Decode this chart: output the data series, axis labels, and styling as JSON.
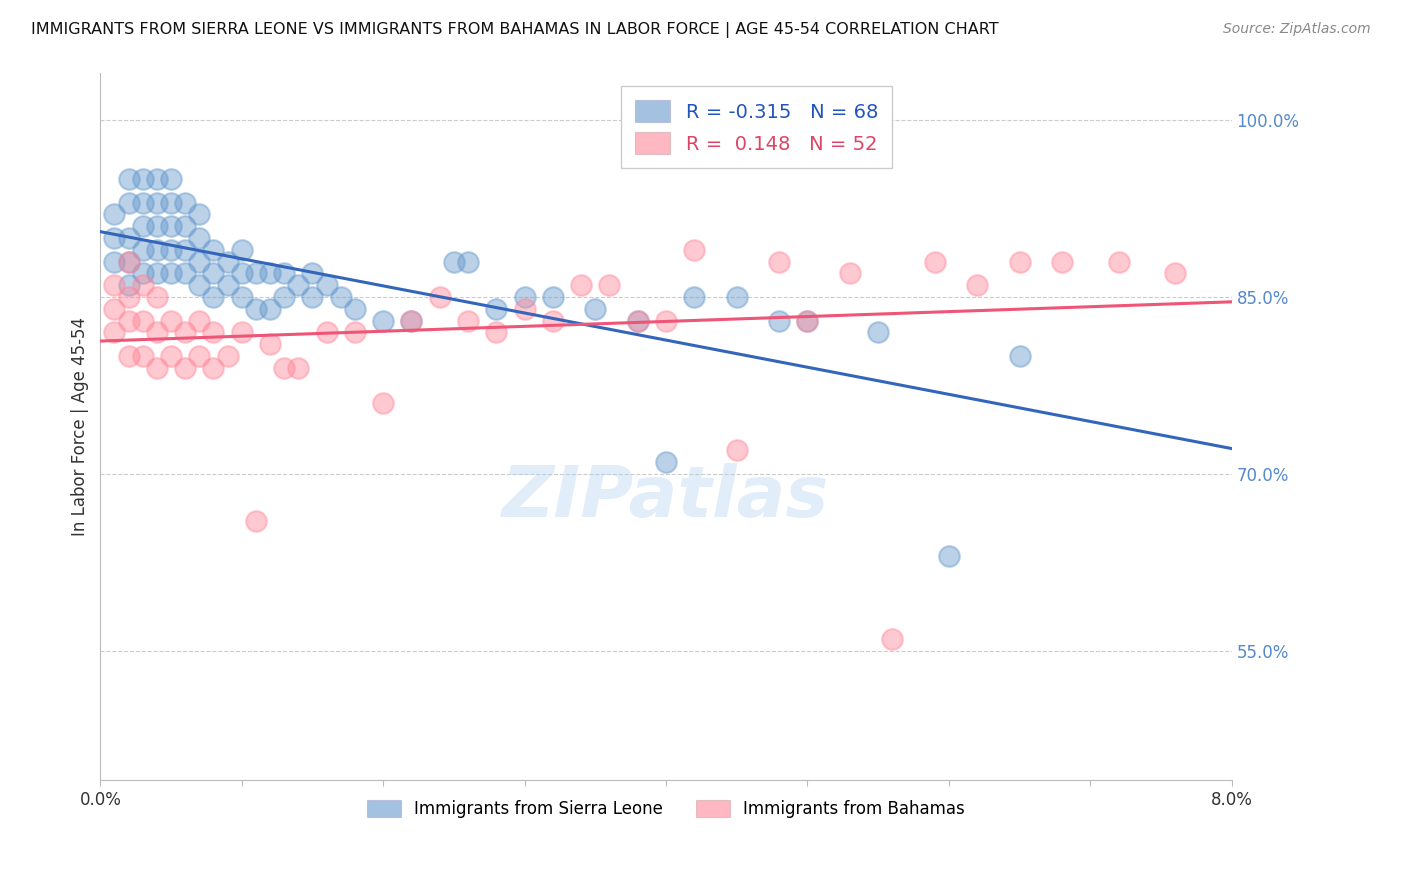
{
  "title": "IMMIGRANTS FROM SIERRA LEONE VS IMMIGRANTS FROM BAHAMAS IN LABOR FORCE | AGE 45-54 CORRELATION CHART",
  "source": "Source: ZipAtlas.com",
  "ylabel": "In Labor Force | Age 45-54",
  "yticks": [
    0.55,
    0.7,
    0.85,
    1.0
  ],
  "ytick_labels": [
    "55.0%",
    "70.0%",
    "85.0%",
    "100.0%"
  ],
  "xmin": 0.0,
  "xmax": 0.08,
  "ymin": 0.44,
  "ymax": 1.04,
  "blue_R": -0.315,
  "blue_N": 68,
  "pink_R": 0.148,
  "pink_N": 52,
  "blue_color": "#6699CC",
  "pink_color": "#FF8899",
  "blue_line_color": "#3366BB",
  "pink_line_color": "#EE5577",
  "legend_label_blue": "Immigrants from Sierra Leone",
  "legend_label_pink": "Immigrants from Bahamas",
  "watermark": "ZIPatlas",
  "blue_scatter_x": [
    0.001,
    0.001,
    0.001,
    0.002,
    0.002,
    0.002,
    0.002,
    0.002,
    0.003,
    0.003,
    0.003,
    0.003,
    0.003,
    0.004,
    0.004,
    0.004,
    0.004,
    0.004,
    0.005,
    0.005,
    0.005,
    0.005,
    0.005,
    0.006,
    0.006,
    0.006,
    0.006,
    0.007,
    0.007,
    0.007,
    0.007,
    0.008,
    0.008,
    0.008,
    0.009,
    0.009,
    0.01,
    0.01,
    0.01,
    0.011,
    0.011,
    0.012,
    0.012,
    0.013,
    0.013,
    0.014,
    0.015,
    0.015,
    0.016,
    0.017,
    0.018,
    0.02,
    0.022,
    0.025,
    0.026,
    0.028,
    0.03,
    0.032,
    0.035,
    0.038,
    0.04,
    0.042,
    0.045,
    0.048,
    0.05,
    0.055,
    0.06,
    0.065
  ],
  "blue_scatter_y": [
    0.88,
    0.9,
    0.92,
    0.86,
    0.88,
    0.9,
    0.93,
    0.95,
    0.87,
    0.89,
    0.91,
    0.93,
    0.95,
    0.87,
    0.89,
    0.91,
    0.93,
    0.95,
    0.87,
    0.89,
    0.91,
    0.93,
    0.95,
    0.87,
    0.89,
    0.91,
    0.93,
    0.86,
    0.88,
    0.9,
    0.92,
    0.85,
    0.87,
    0.89,
    0.86,
    0.88,
    0.85,
    0.87,
    0.89,
    0.84,
    0.87,
    0.84,
    0.87,
    0.85,
    0.87,
    0.86,
    0.85,
    0.87,
    0.86,
    0.85,
    0.84,
    0.83,
    0.83,
    0.88,
    0.88,
    0.84,
    0.85,
    0.85,
    0.84,
    0.83,
    0.71,
    0.85,
    0.85,
    0.83,
    0.83,
    0.82,
    0.63,
    0.8
  ],
  "pink_scatter_x": [
    0.001,
    0.001,
    0.001,
    0.002,
    0.002,
    0.002,
    0.002,
    0.003,
    0.003,
    0.003,
    0.004,
    0.004,
    0.004,
    0.005,
    0.005,
    0.006,
    0.006,
    0.007,
    0.007,
    0.008,
    0.008,
    0.009,
    0.01,
    0.011,
    0.012,
    0.013,
    0.014,
    0.016,
    0.018,
    0.02,
    0.022,
    0.024,
    0.026,
    0.028,
    0.03,
    0.032,
    0.034,
    0.036,
    0.038,
    0.04,
    0.042,
    0.045,
    0.048,
    0.05,
    0.053,
    0.056,
    0.059,
    0.062,
    0.065,
    0.068,
    0.072,
    0.076
  ],
  "pink_scatter_y": [
    0.82,
    0.84,
    0.86,
    0.8,
    0.83,
    0.85,
    0.88,
    0.8,
    0.83,
    0.86,
    0.79,
    0.82,
    0.85,
    0.8,
    0.83,
    0.79,
    0.82,
    0.8,
    0.83,
    0.79,
    0.82,
    0.8,
    0.82,
    0.66,
    0.81,
    0.79,
    0.79,
    0.82,
    0.82,
    0.76,
    0.83,
    0.85,
    0.83,
    0.82,
    0.84,
    0.83,
    0.86,
    0.86,
    0.83,
    0.83,
    0.89,
    0.72,
    0.88,
    0.83,
    0.87,
    0.56,
    0.88,
    0.86,
    0.88,
    0.88,
    0.88,
    0.87
  ]
}
